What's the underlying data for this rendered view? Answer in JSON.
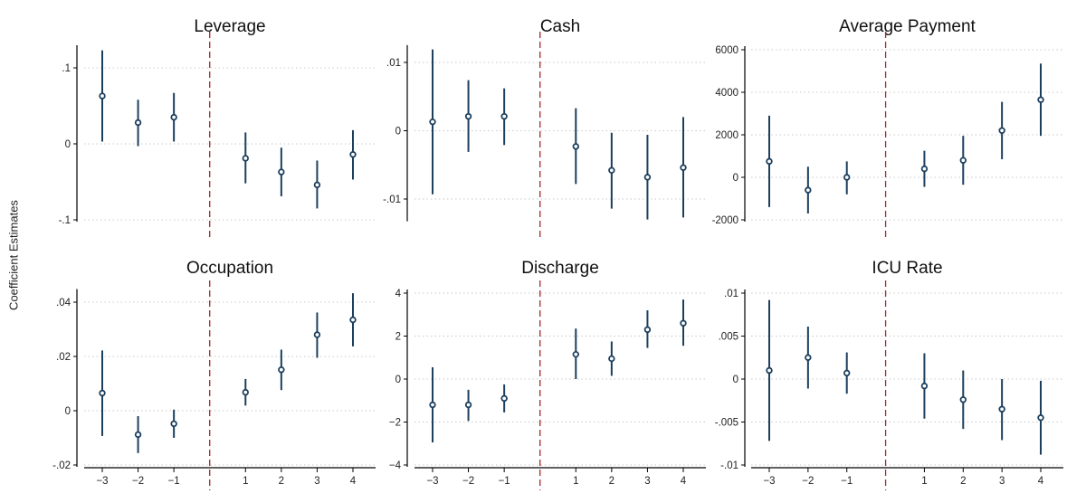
{
  "ylabel": "Coefficient Estimates",
  "colors": {
    "marker": "#1c3f5e",
    "ci": "#1c3f5e",
    "event_line": "#a52a2a",
    "grid": "#c8c8c8",
    "axis": "#000000"
  },
  "chart_data": [
    {
      "type": "scatter",
      "title": "Leverage",
      "x": [
        -3,
        -2,
        -1,
        1,
        2,
        3,
        4
      ],
      "y": [
        0.063,
        0.028,
        0.035,
        -0.019,
        -0.037,
        -0.054,
        -0.014
      ],
      "ci_low": [
        0.003,
        -0.003,
        0.003,
        -0.052,
        -0.069,
        -0.085,
        -0.047
      ],
      "ci_high": [
        0.123,
        0.058,
        0.067,
        0.015,
        -0.005,
        -0.022,
        0.018
      ],
      "yticks": [
        0.1,
        0,
        -0.1
      ],
      "ytick_labels": [
        ".1",
        "0",
        "-.1"
      ],
      "ylim": [
        -0.1,
        0.125
      ],
      "event_line_x": 0,
      "grid": true
    },
    {
      "type": "scatter",
      "title": "Cash",
      "x": [
        -3,
        -2,
        -1,
        1,
        2,
        3,
        4
      ],
      "y": [
        0.0013,
        0.0021,
        0.0021,
        -0.0023,
        -0.0058,
        -0.0068,
        -0.0054
      ],
      "ci_low": [
        -0.0093,
        -0.0031,
        -0.0021,
        -0.0078,
        -0.0114,
        -0.013,
        -0.0127
      ],
      "ci_high": [
        0.0119,
        0.0074,
        0.0062,
        0.0033,
        -0.0003,
        -0.0006,
        0.002
      ],
      "yticks": [
        0.01,
        0,
        -0.01
      ],
      "ytick_labels": [
        ".01",
        "0",
        "-.01"
      ],
      "ylim": [
        -0.013,
        0.012
      ],
      "event_line_x": 0,
      "grid": true
    },
    {
      "type": "scatter",
      "title": "Average Payment",
      "x": [
        -3,
        -2,
        -1,
        1,
        2,
        3,
        4
      ],
      "y": [
        750,
        -600,
        0,
        400,
        800,
        2200,
        3650
      ],
      "ci_low": [
        -1400,
        -1700,
        -800,
        -450,
        -350,
        850,
        1950
      ],
      "ci_high": [
        2900,
        500,
        750,
        1250,
        1950,
        3550,
        5350
      ],
      "yticks": [
        6000,
        4000,
        2000,
        0,
        -2000
      ],
      "ytick_labels": [
        "6000",
        "4000",
        "2000",
        "0",
        "-2000"
      ],
      "ylim": [
        -2000,
        6000
      ],
      "event_line_x": 0,
      "grid": true
    },
    {
      "type": "scatter",
      "title": "Occupation",
      "x": [
        -3,
        -2,
        -1,
        1,
        2,
        3,
        4
      ],
      "y": [
        0.0065,
        -0.0088,
        -0.0048,
        0.0068,
        0.0151,
        0.028,
        0.0335
      ],
      "ci_low": [
        -0.0093,
        -0.0156,
        -0.01,
        0.0019,
        0.0076,
        0.0195,
        0.0237
      ],
      "ci_high": [
        0.0222,
        -0.002,
        0.0004,
        0.0117,
        0.0225,
        0.0362,
        0.0433
      ],
      "yticks": [
        0.04,
        0.02,
        0,
        -0.02
      ],
      "ytick_labels": [
        ".04",
        ".02",
        "0",
        "-.02"
      ],
      "ylim": [
        -0.02,
        0.0435
      ],
      "event_line_x": 0,
      "grid": true
    },
    {
      "type": "scatter",
      "title": "Discharge",
      "x": [
        -3,
        -2,
        -1,
        1,
        2,
        3,
        4
      ],
      "y": [
        -1.2,
        -1.2,
        -0.9,
        1.15,
        0.95,
        2.3,
        2.6
      ],
      "ci_low": [
        -2.95,
        -1.95,
        -1.55,
        0,
        0.15,
        1.45,
        1.55
      ],
      "ci_high": [
        0.55,
        -0.5,
        -0.25,
        2.35,
        1.75,
        3.2,
        3.7
      ],
      "yticks": [
        4,
        2,
        0,
        -2,
        -4
      ],
      "ytick_labels": [
        "4",
        "2",
        "0",
        "−2",
        "−4"
      ],
      "ylim": [
        -4,
        4
      ],
      "event_line_x": 0,
      "grid": true
    },
    {
      "type": "scatter",
      "title": "ICU Rate",
      "x": [
        -3,
        -2,
        -1,
        1,
        2,
        3,
        4
      ],
      "y": [
        0.001,
        0.0025,
        0.0007,
        -0.0008,
        -0.0024,
        -0.0035,
        -0.0045
      ],
      "ci_low": [
        -0.0072,
        -0.0011,
        -0.0017,
        -0.0046,
        -0.0058,
        -0.0071,
        -0.0088
      ],
      "ci_high": [
        0.0092,
        0.0061,
        0.0031,
        0.003,
        0.001,
        0,
        -0.0002
      ],
      "yticks": [
        0.01,
        0.005,
        0,
        -0.005,
        -0.01
      ],
      "ytick_labels": [
        ".01",
        ".005",
        "0",
        "-.005",
        "-.01"
      ],
      "ylim": [
        -0.01,
        0.01
      ],
      "event_line_x": 0,
      "grid": true
    }
  ],
  "x_ticks": [
    -3,
    -2,
    -1,
    1,
    2,
    3,
    4
  ],
  "x_tick_labels": [
    "−3",
    "−2",
    "−1",
    "1",
    "2",
    "3",
    "4"
  ]
}
